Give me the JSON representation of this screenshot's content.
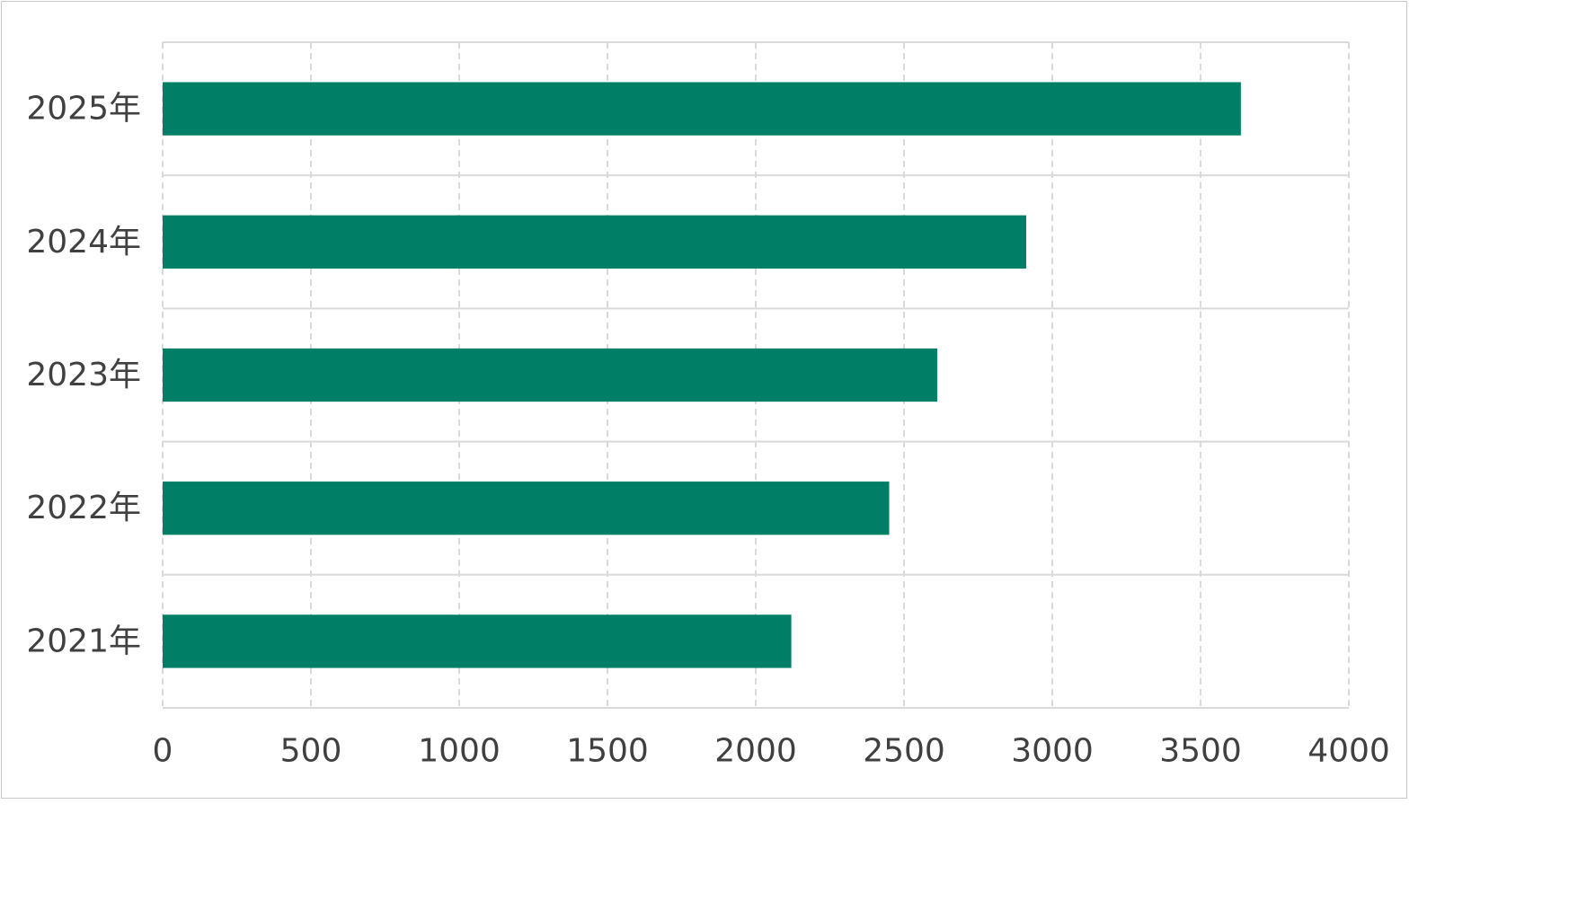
{
  "chart_data": {
    "type": "bar",
    "orientation": "horizontal",
    "title": "",
    "xlabel": "",
    "ylabel": "",
    "categories": [
      "2021年",
      "2022年",
      "2023年",
      "2024年",
      "2025年"
    ],
    "values": [
      2120,
      2450,
      2612,
      2912,
      3636
    ],
    "xlim": [
      0,
      4000
    ],
    "xticks": [
      "0",
      "500",
      "1000",
      "1500",
      "2000",
      "2500",
      "3000",
      "3500",
      "4000"
    ],
    "grid": true,
    "legend": "none",
    "colors": {
      "bar": "#007F67",
      "grid_major": "#D9D9D9",
      "grid_minor": "#D9D9D9",
      "axis_text": "#404040"
    }
  }
}
